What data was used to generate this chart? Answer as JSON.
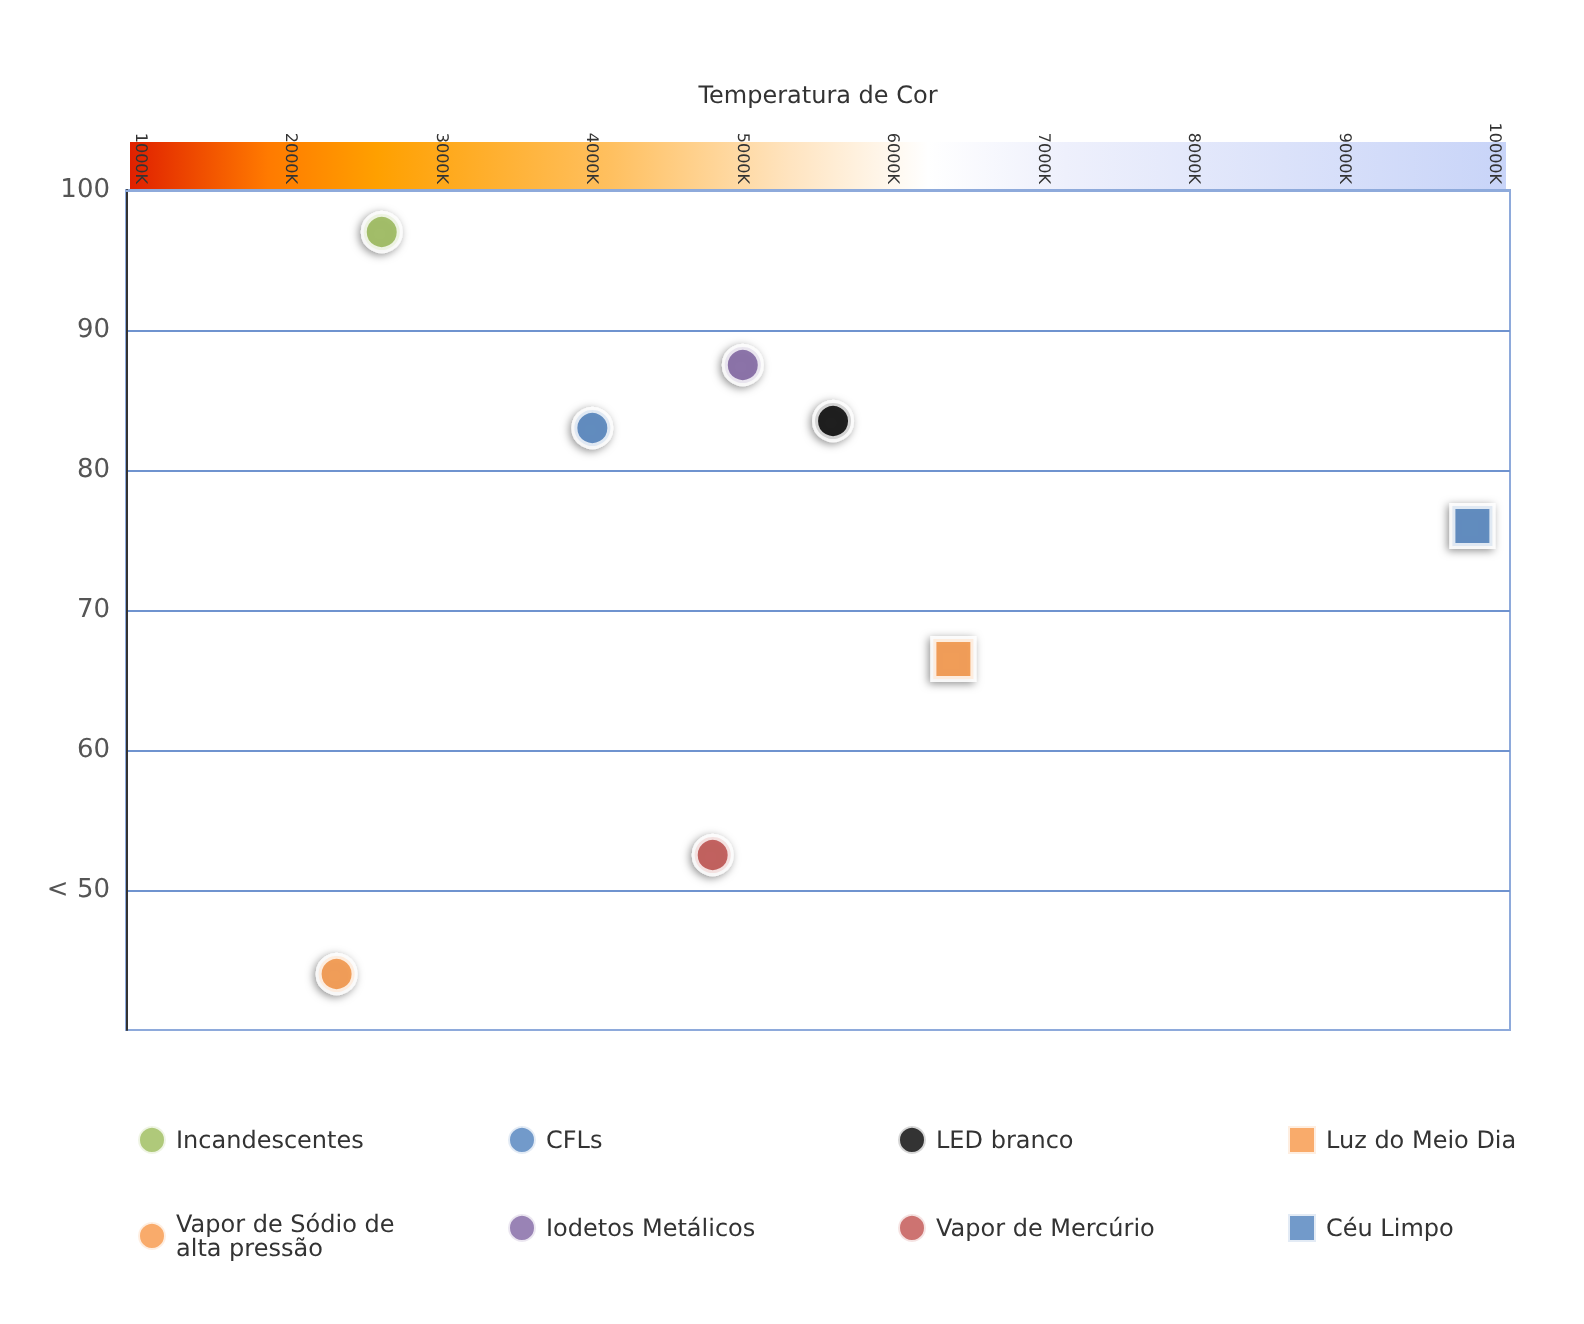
{
  "chart_data": {
    "type": "scatter",
    "xlabel": "Temperatura de Cor",
    "xlim": [
      900,
      10100
    ],
    "xticks": [
      {
        "value": 1000,
        "label": "1000K"
      },
      {
        "value": 2000,
        "label": "2000K"
      },
      {
        "value": 3000,
        "label": "3000K"
      },
      {
        "value": 4000,
        "label": "4000K"
      },
      {
        "value": 5000,
        "label": "5000K"
      },
      {
        "value": 6000,
        "label": "6000K"
      },
      {
        "value": 7000,
        "label": "7000K"
      },
      {
        "value": 8000,
        "label": "8000K"
      },
      {
        "value": 9000,
        "label": "9000K"
      },
      {
        "value": 10000,
        "label": "10000K"
      }
    ],
    "ylim": [
      40,
      100
    ],
    "yticks": [
      {
        "value": 50,
        "label": "< 50"
      },
      60,
      70,
      80,
      90,
      100
    ],
    "grid": "y",
    "legend": "bottom",
    "series": [
      {
        "name": "Incandescentes",
        "color": "#9bbb59",
        "marker": "circle",
        "x": [
          2600
        ],
        "values": [
          97
        ]
      },
      {
        "name": "CFLs",
        "color": "#4f81bd",
        "marker": "circle",
        "x": [
          4000
        ],
        "values": [
          83
        ]
      },
      {
        "name": "LED branco",
        "color": "#000000",
        "marker": "circle",
        "x": [
          5600
        ],
        "values": [
          83.5
        ]
      },
      {
        "name": "Luz do Meio Dia",
        "color": "#f79646",
        "marker": "square",
        "x": [
          6400
        ],
        "values": [
          66.5
        ]
      },
      {
        "name": "Vapor de Sódio de alta pressão",
        "color": "#f79646",
        "marker": "circle",
        "x": [
          2300
        ],
        "values": [
          44
        ]
      },
      {
        "name": "Iodetos Metálicos",
        "color": "#8064a2",
        "marker": "circle",
        "x": [
          5000
        ],
        "values": [
          87.5
        ]
      },
      {
        "name": "Vapor de Mercúrio",
        "color": "#c0504d",
        "marker": "circle",
        "x": [
          4800
        ],
        "values": [
          52.5
        ]
      },
      {
        "name": "Céu Limpo",
        "color": "#4f81bd",
        "marker": "square",
        "x": [
          9850
        ],
        "values": [
          76
        ]
      }
    ]
  }
}
